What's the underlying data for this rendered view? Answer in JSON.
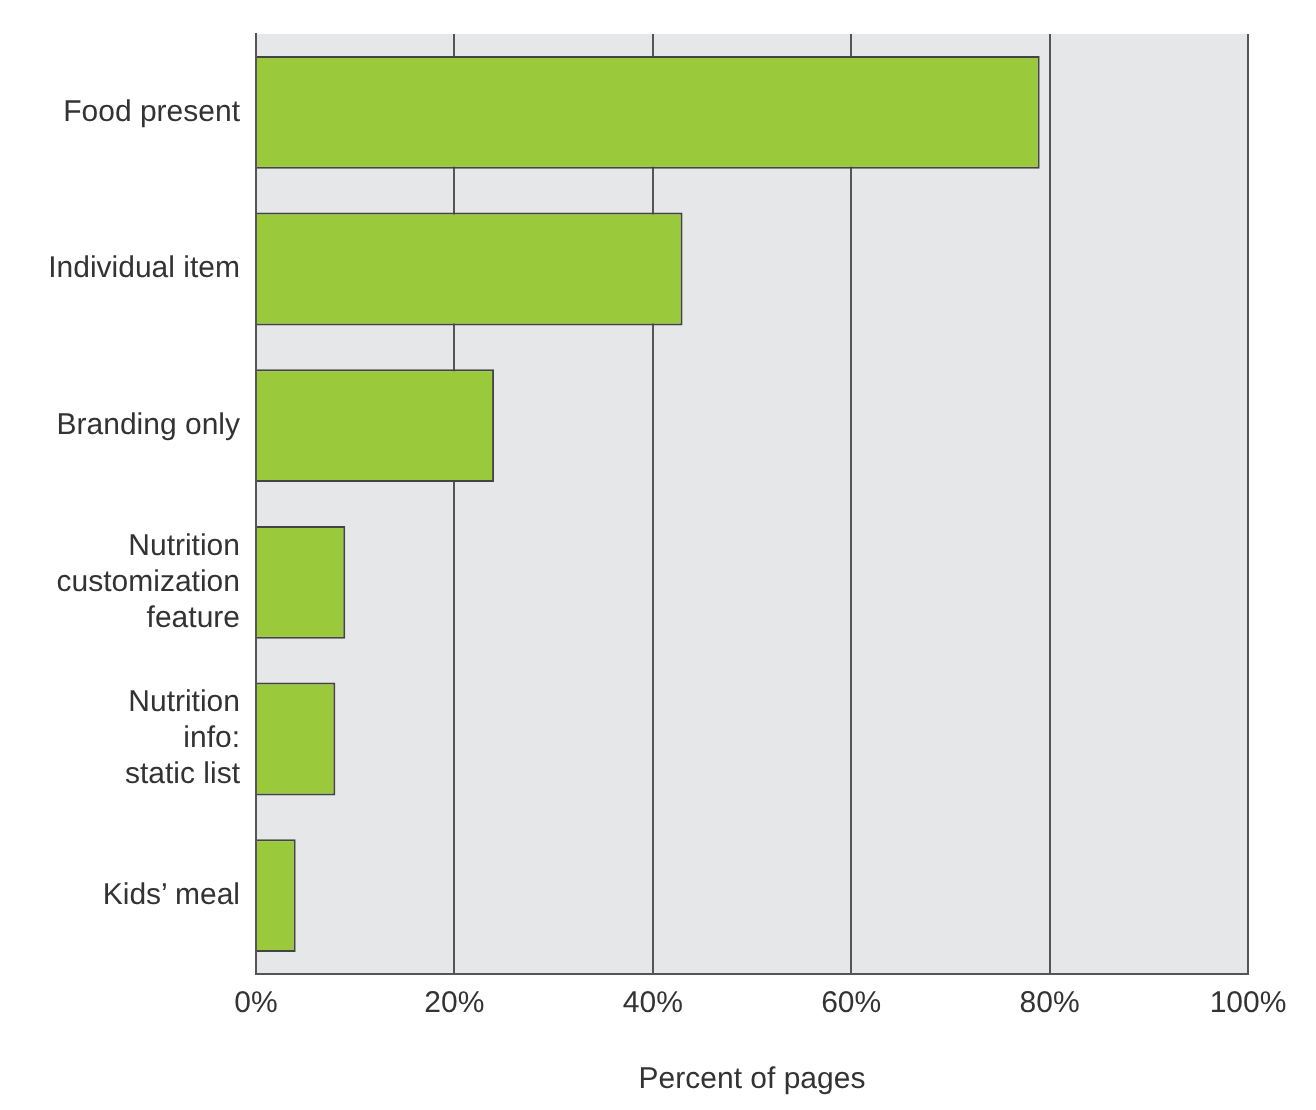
{
  "chart_data": {
    "type": "bar",
    "orientation": "horizontal",
    "xlabel": "Percent of pages",
    "categories": [
      "Food present",
      "Individual item",
      "Branding only",
      "Nutrition\ncustomization\nfeature",
      "Nutrition\ninfo:\nstatic list",
      "Kids’ meal"
    ],
    "values": [
      79,
      43,
      24,
      9,
      8,
      4
    ],
    "color": "#9bc93c",
    "xlim": [
      0,
      100
    ],
    "xticks": [
      {
        "value": 0,
        "label": "0%"
      },
      {
        "value": 20,
        "label": "20%"
      },
      {
        "value": 40,
        "label": "40%"
      },
      {
        "value": 60,
        "label": "60%"
      },
      {
        "value": 80,
        "label": "80%"
      },
      {
        "value": 100,
        "label": "100%"
      }
    ],
    "grid": "x"
  }
}
